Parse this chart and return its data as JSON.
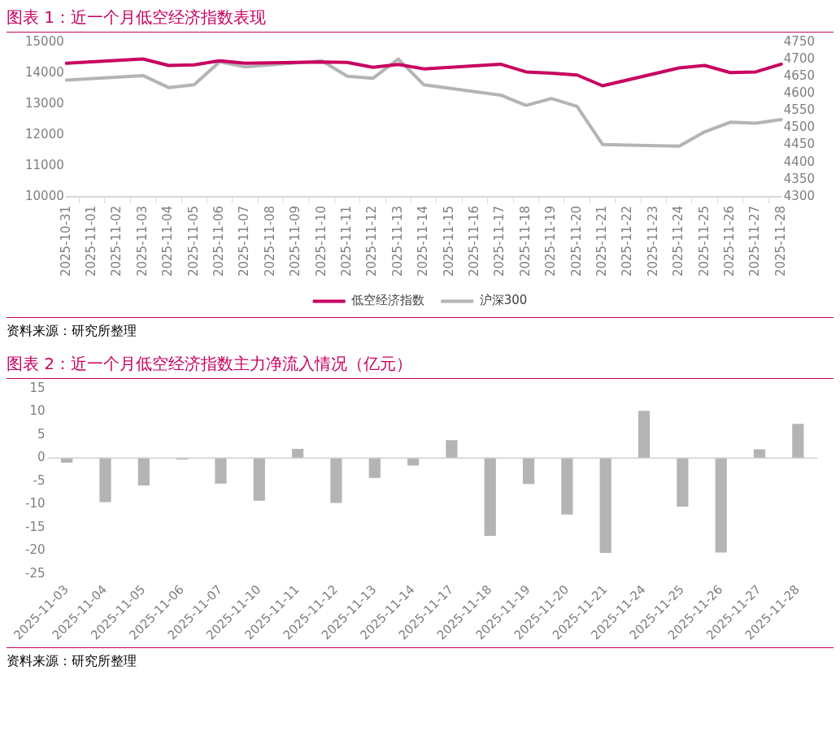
{
  "chart_data": [
    {
      "type": "line",
      "title": "图表 1：近一个月低空经济指数表现",
      "categories": [
        "2025-10-31",
        "2025-11-01",
        "2025-11-02",
        "2025-11-03",
        "2025-11-04",
        "2025-11-05",
        "2025-11-06",
        "2025-11-07",
        "2025-11-08",
        "2025-11-09",
        "2025-11-10",
        "2025-11-11",
        "2025-11-12",
        "2025-11-13",
        "2025-11-14",
        "2025-11-15",
        "2025-11-16",
        "2025-11-17",
        "2025-11-18",
        "2025-11-19",
        "2025-11-20",
        "2025-11-21",
        "2025-11-22",
        "2025-11-23",
        "2025-11-24",
        "2025-11-25",
        "2025-11-26",
        "2025-11-27",
        "2025-11-28"
      ],
      "series": [
        {
          "name": "低空经济指数",
          "color": "#c8005f",
          "values": [
            14320,
            null,
            null,
            14460,
            14250,
            14270,
            14400,
            14320,
            null,
            null,
            14360,
            14350,
            14190,
            14280,
            14140,
            null,
            null,
            14290,
            14040,
            14000,
            13940,
            13590,
            null,
            null,
            14170,
            14250,
            14020,
            14040,
            14290
          ]
        },
        {
          "name": "沪深300",
          "color": "#b4b4b4",
          "axis": "y2",
          "values": [
            4640,
            null,
            null,
            4653,
            4618,
            4626,
            4693,
            4678,
            null,
            null,
            4696,
            4651,
            4645,
            4701,
            4626,
            null,
            null,
            4596,
            4566,
            4586,
            4563,
            4452,
            null,
            null,
            4447,
            4489,
            4517,
            4514,
            4525
          ]
        }
      ],
      "ylim": [
        10000,
        15000
      ],
      "yticks": [
        10000,
        11000,
        12000,
        13000,
        14000,
        15000
      ],
      "y2lim": [
        4300,
        4750
      ],
      "y2ticks": [
        4300,
        4350,
        4400,
        4450,
        4500,
        4550,
        4600,
        4650,
        4700,
        4750
      ],
      "grid": false,
      "legend": "bottom",
      "marker": "none",
      "line_style": "solid",
      "annotations": [
        "资料来源：研究所整理"
      ]
    },
    {
      "type": "bar",
      "title": "图表 2：近一个月低空经济指数主力净流入情况（亿元）",
      "categories": [
        "2025-11-03",
        "2025-11-04",
        "2025-11-05",
        "2025-11-06",
        "2025-11-07",
        "2025-11-10",
        "2025-11-11",
        "2025-11-12",
        "2025-11-13",
        "2025-11-14",
        "2025-11-17",
        "2025-11-18",
        "2025-11-19",
        "2025-11-20",
        "2025-11-21",
        "2025-11-24",
        "2025-11-25",
        "2025-11-26",
        "2025-11-27",
        "2025-11-28"
      ],
      "values": [
        -1.0,
        -9.5,
        -5.9,
        -0.3,
        -5.5,
        -9.2,
        2.0,
        -9.7,
        -4.3,
        -1.6,
        3.9,
        -16.8,
        -5.6,
        -12.2,
        -20.5,
        10.2,
        -10.5,
        -20.4,
        1.9,
        7.4
      ],
      "color": "#b4b4b4",
      "ylim": [
        -25,
        15
      ],
      "yticks": [
        -25,
        -20,
        -15,
        -10,
        -5,
        0,
        5,
        10,
        15
      ],
      "grid": false,
      "legend": false,
      "ref_lines": [
        {
          "axis": "y",
          "value": 0,
          "color": "#d9d9d9"
        }
      ],
      "annotations": [
        "资料来源：研究所整理"
      ]
    }
  ]
}
